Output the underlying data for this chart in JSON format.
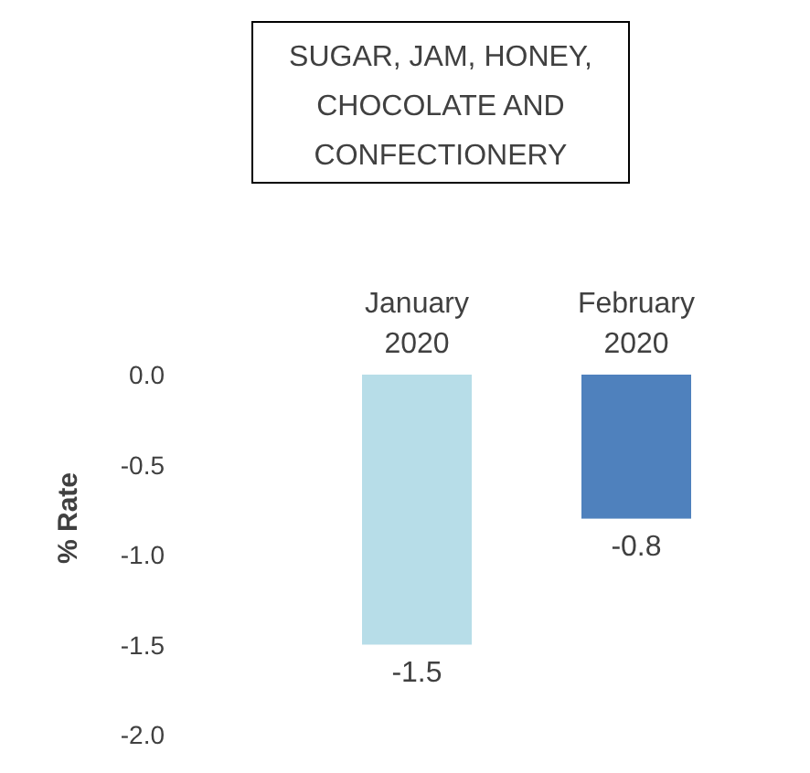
{
  "chart_data": {
    "type": "bar",
    "title": "SUGAR, JAM, HONEY, CHOCOLATE AND CONFECTIONERY",
    "ylabel": "% Rate",
    "categories": [
      "January 2020",
      "February 2020"
    ],
    "values": [
      -1.5,
      -0.8
    ],
    "colors": [
      "#b7dde8",
      "#4f81bd"
    ],
    "ylim": [
      -2,
      0
    ],
    "yticks": [
      {
        "value": 0,
        "label": "0.0"
      },
      {
        "value": -0.5,
        "label": "-0.5"
      },
      {
        "value": -1,
        "label": "-1.0"
      },
      {
        "value": -1.5,
        "label": "-1.5"
      },
      {
        "value": -2,
        "label": "-2.0"
      }
    ],
    "data_labels": true
  }
}
